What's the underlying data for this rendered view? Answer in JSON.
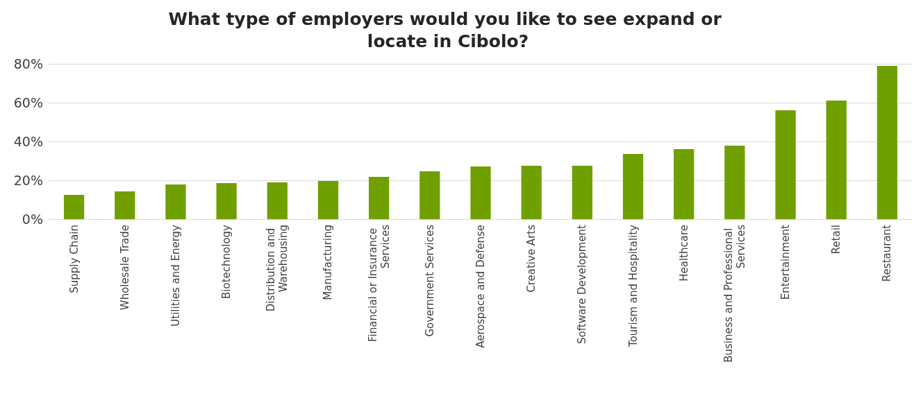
{
  "chart_data": {
    "type": "bar",
    "title": "What type of employers would you like to see expand or locate in Cibolo?",
    "categories": [
      "Supply Chain",
      "Wholesale Trade",
      "Utilities and Energy",
      "Biotechnology",
      "Distribution and Warehousing",
      "Manufacturing",
      "Financial or Insurance Services",
      "Government Services",
      "Aerospace and Defense",
      "Creative Arts",
      "Software Development",
      "Tourism and Hospitality",
      "Healthcare",
      "Business and Professional Services",
      "Entertainment",
      "Retail",
      "Restaurant"
    ],
    "values": [
      12.5,
      14.3,
      17.9,
      18.6,
      18.9,
      19.6,
      21.8,
      24.6,
      27.1,
      27.5,
      27.5,
      33.6,
      36.1,
      37.9,
      56.1,
      61.1,
      78.9
    ],
    "color": "#70a000",
    "ylim": [
      0,
      80
    ],
    "yticks": [
      {
        "value": 0,
        "label": "0%"
      },
      {
        "value": 20,
        "label": "20%"
      },
      {
        "value": 40,
        "label": "40%"
      },
      {
        "value": 60,
        "label": "60%"
      },
      {
        "value": 80,
        "label": "80%"
      }
    ],
    "grid": "y"
  }
}
